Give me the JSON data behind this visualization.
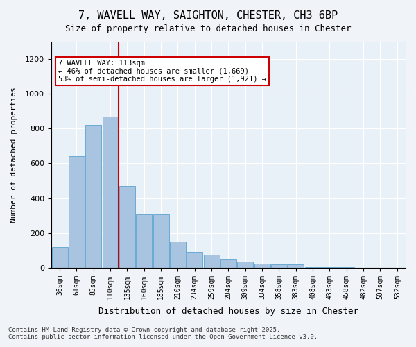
{
  "title": "7, WAVELL WAY, SAIGHTON, CHESTER, CH3 6BP",
  "subtitle": "Size of property relative to detached houses in Chester",
  "xlabel": "Distribution of detached houses by size in Chester",
  "ylabel": "Number of detached properties",
  "bar_color": "#a8c4e0",
  "bar_edge_color": "#6aaad4",
  "background_color": "#e8f0f8",
  "categories": [
    "36sqm",
    "61sqm",
    "85sqm",
    "110sqm",
    "135sqm",
    "160sqm",
    "185sqm",
    "210sqm",
    "234sqm",
    "259sqm",
    "284sqm",
    "309sqm",
    "334sqm",
    "358sqm",
    "383sqm",
    "408sqm",
    "433sqm",
    "458sqm",
    "482sqm",
    "507sqm",
    "532sqm"
  ],
  "values": [
    120,
    640,
    820,
    870,
    470,
    305,
    305,
    150,
    90,
    75,
    50,
    35,
    25,
    20,
    20,
    5,
    5,
    2,
    1,
    1,
    1
  ],
  "ylim": [
    0,
    1300
  ],
  "yticks": [
    0,
    200,
    400,
    600,
    800,
    1000,
    1200
  ],
  "property_line_x": 3,
  "annotation_title": "7 WAVELL WAY: 113sqm",
  "annotation_line1": "← 46% of detached houses are smaller (1,669)",
  "annotation_line2": "53% of semi-detached houses are larger (1,921) →",
  "annotation_box_color": "#ffffff",
  "annotation_box_edge": "#cc0000",
  "vline_color": "#cc0000",
  "footer1": "Contains HM Land Registry data © Crown copyright and database right 2025.",
  "footer2": "Contains public sector information licensed under the Open Government Licence v3.0."
}
